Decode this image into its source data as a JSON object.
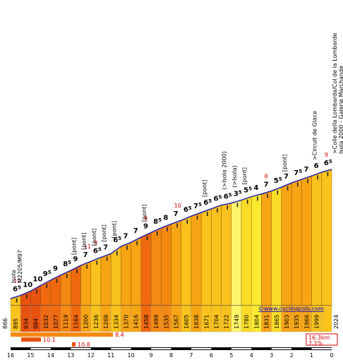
{
  "chart_data": {
    "type": "area",
    "title": "",
    "x_axis_labels": [
      "16",
      "15",
      "14",
      "13",
      "12",
      "11",
      "10",
      "9",
      "8",
      "7",
      "6",
      "5",
      "4",
      "3",
      "2",
      "1",
      "0"
    ],
    "altitudes": [
      "866",
      "895",
      "934",
      "984",
      "1032",
      "1077",
      "1119",
      "1164",
      "1200",
      "1236",
      "1269",
      "1334",
      "1370",
      "1416",
      "1458",
      "1499",
      "1535",
      "1567",
      "1605",
      "1638",
      "1671",
      "1704",
      "1722",
      "1749",
      "1780",
      "1804",
      "1831",
      "1865",
      "1903",
      "1935",
      "1966",
      "1999",
      "2024"
    ],
    "gradients": [
      {
        "v": "6",
        "d": "5"
      },
      {
        "v": "10",
        "d": ""
      },
      {
        "v": "10",
        "d": ""
      },
      {
        "v": "9",
        "d": "5"
      },
      {
        "v": "9",
        "d": ""
      },
      {
        "v": "8",
        "d": "5"
      },
      {
        "v": "9",
        "d": ""
      },
      {
        "v": "7",
        "d": ""
      },
      {
        "v": "6",
        "d": "5"
      },
      {
        "v": "7",
        "d": ""
      },
      {
        "v": "6",
        "d": "5"
      },
      {
        "v": "7",
        "d": ""
      },
      {
        "v": "7",
        "d": ""
      },
      {
        "v": "9",
        "d": ""
      },
      {
        "v": "8",
        "d": "5"
      },
      {
        "v": "8",
        "d": ""
      },
      {
        "v": "7",
        "d": ""
      },
      {
        "v": "6",
        "d": "5"
      },
      {
        "v": "7",
        "d": "5"
      },
      {
        "v": "6",
        "d": "5"
      },
      {
        "v": "6",
        "d": "5"
      },
      {
        "v": "6",
        "d": "5"
      },
      {
        "v": "3",
        "d": "5"
      },
      {
        "v": "5",
        "d": "5"
      },
      {
        "v": "4",
        "d": ""
      },
      {
        "v": "7",
        "d": ""
      },
      {
        "v": "5",
        "d": "5"
      },
      {
        "v": "7",
        "d": ""
      },
      {
        "v": "7",
        "d": "5"
      },
      {
        "v": "7",
        "d": ""
      },
      {
        "v": "6",
        "d": ""
      },
      {
        "v": "6",
        "d": "5"
      },
      {
        "v": "5",
        "d": ""
      }
    ],
    "max_gradients": [
      {
        "seg": 0,
        "v": "10"
      },
      {
        "seg": 7,
        "v": "11"
      },
      {
        "seg": 8,
        "v": "9"
      },
      {
        "seg": 13,
        "v": "9"
      },
      {
        "seg": 16,
        "v": "10"
      },
      {
        "seg": 25,
        "v": "8"
      },
      {
        "seg": 31,
        "v": "9"
      }
    ],
    "annotations": [
      {
        "seg": 0,
        "text": "Isola"
      },
      {
        "seg": 0,
        "text": "M2205/M97"
      },
      {
        "seg": 6,
        "text": "[pont]"
      },
      {
        "seg": 7,
        "text": "[pont]"
      },
      {
        "seg": 8,
        "text": "[pont]"
      },
      {
        "seg": 9,
        "text": "[pont]"
      },
      {
        "seg": 10,
        "text": "[pont]"
      },
      {
        "seg": 13,
        "text": "[pont]"
      },
      {
        "seg": 19,
        "text": "[pont]"
      },
      {
        "seg": 21,
        "text": "(>Isola 2000)"
      },
      {
        "seg": 22,
        "text": "(>Isola)"
      },
      {
        "seg": 23,
        "text": "[pont]"
      },
      {
        "seg": 27,
        "text": "[pont]"
      },
      {
        "seg": 30,
        "text": ">Circuit de Glace"
      },
      {
        "seg": 32,
        "text": ">Colle della Lombarda/Col de la Lombarde"
      },
      {
        "seg": 32,
        "text": "Isola 2000 - Galerie Marchande"
      }
    ],
    "steepest": [
      {
        "label": "8.4"
      },
      {
        "label": "10.1"
      },
      {
        "label": "10.8"
      }
    ],
    "summary": {
      "distance": "16.3km",
      "avg": "7.1%"
    },
    "credit": "©www.cyclingcols.com"
  }
}
